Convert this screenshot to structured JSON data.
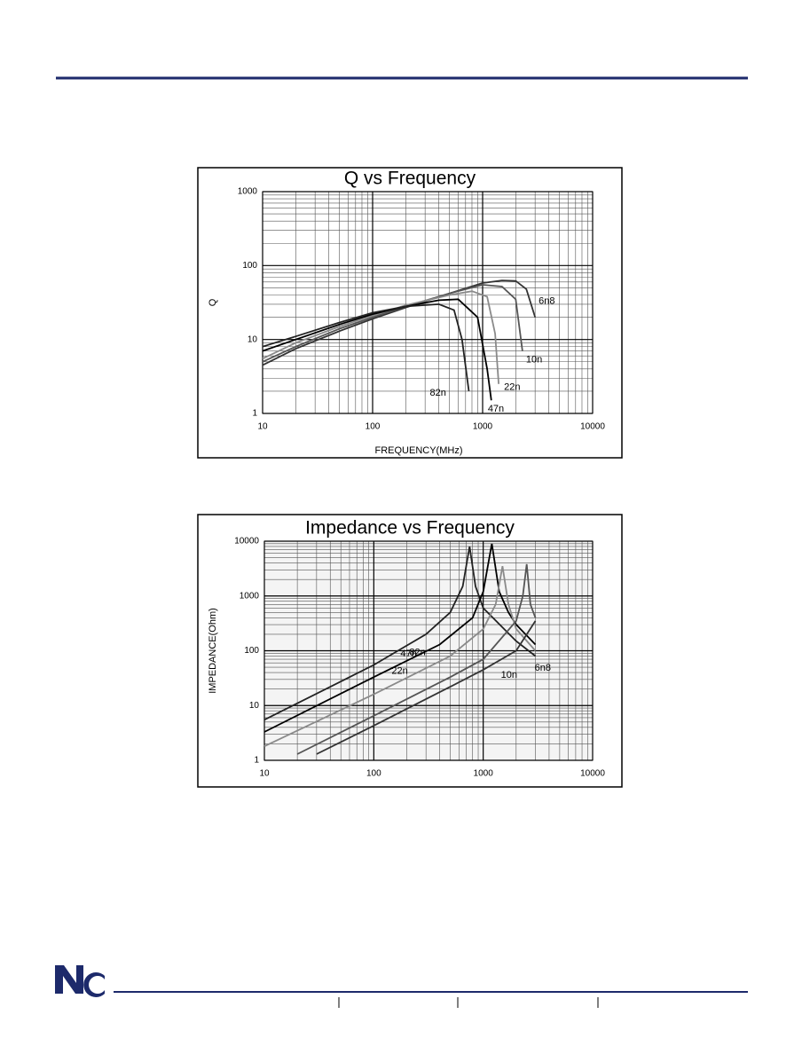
{
  "chart_data": [
    {
      "type": "line",
      "title": "Q vs Frequency",
      "xlabel": "FREQUENCY(MHz)",
      "ylabel": "Q",
      "xscale": "log",
      "yscale": "log",
      "grid": true,
      "xlim": [
        10,
        10000
      ],
      "xticks": [
        10,
        100,
        1000,
        10000
      ],
      "ylim": [
        1,
        1000
      ],
      "yticks": [
        1,
        10,
        100,
        1000
      ],
      "series": [
        {
          "name": "6n8",
          "color": "#333333",
          "x": [
            10,
            20,
            50,
            100,
            200,
            500,
            1000,
            1500,
            2000,
            2500,
            3000
          ],
          "values": [
            4.5,
            7.5,
            13,
            19,
            27,
            42,
            58,
            63,
            62,
            48,
            20
          ]
        },
        {
          "name": "10n",
          "color": "#555555",
          "x": [
            10,
            20,
            50,
            100,
            200,
            500,
            1000,
            1500,
            2000,
            2300
          ],
          "values": [
            5,
            8,
            14,
            20,
            28,
            42,
            55,
            52,
            35,
            7
          ]
        },
        {
          "name": "22n",
          "color": "#8a8a8a",
          "x": [
            10,
            20,
            50,
            100,
            200,
            500,
            800,
            1100,
            1300,
            1400
          ],
          "values": [
            5.5,
            9,
            15,
            21,
            29,
            40,
            45,
            38,
            12,
            2.5
          ]
        },
        {
          "name": "47n",
          "color": "#000000",
          "x": [
            10,
            20,
            50,
            100,
            200,
            400,
            600,
            900,
            1100,
            1200
          ],
          "values": [
            7,
            10,
            16,
            22,
            28,
            34,
            35,
            20,
            4,
            1.5
          ]
        },
        {
          "name": "82n",
          "color": "#222222",
          "x": [
            10,
            20,
            50,
            100,
            200,
            400,
            550,
            650,
            750
          ],
          "values": [
            8,
            11,
            17,
            23,
            28,
            30,
            25,
            10,
            2
          ]
        }
      ]
    },
    {
      "type": "line",
      "title": "Impedance vs Frequency",
      "ylabel": "IMPEDANCE(Ohm)",
      "xscale": "log",
      "yscale": "log",
      "grid": true,
      "xlim": [
        10,
        10000
      ],
      "xticks": [
        10,
        100,
        1000,
        10000
      ],
      "ylim": [
        1,
        10000
      ],
      "yticks": [
        1,
        10,
        100,
        1000,
        10000
      ],
      "series": [
        {
          "name": "82n",
          "color": "#222222",
          "x": [
            10,
            100,
            300,
            500,
            650,
            750,
            850,
            1000,
            2000,
            3000
          ],
          "values": [
            5.5,
            55,
            200,
            500,
            1500,
            8000,
            1500,
            600,
            150,
            80
          ]
        },
        {
          "name": "47n",
          "color": "#000000",
          "x": [
            10,
            100,
            400,
            800,
            1000,
            1200,
            1400,
            1700,
            2000,
            3000
          ],
          "values": [
            3.3,
            33,
            130,
            400,
            1200,
            9000,
            1200,
            500,
            300,
            130
          ]
        },
        {
          "name": "22n",
          "color": "#8a8a8a",
          "x": [
            10,
            100,
            500,
            1000,
            1300,
            1500,
            1700,
            2000,
            3000
          ],
          "values": [
            1.8,
            16,
            80,
            250,
            700,
            3500,
            700,
            250,
            100
          ]
        },
        {
          "name": "10n",
          "color": "#555555",
          "x": [
            20,
            100,
            500,
            1000,
            2000,
            2300,
            2500,
            2700,
            3000
          ],
          "values": [
            1.3,
            6.5,
            33,
            70,
            350,
            1000,
            3800,
            700,
            400
          ]
        },
        {
          "name": "6n8",
          "color": "#333333",
          "x": [
            30,
            100,
            500,
            1000,
            2000,
            3000
          ],
          "values": [
            1.3,
            4.3,
            22,
            45,
            100,
            350
          ]
        }
      ]
    }
  ]
}
